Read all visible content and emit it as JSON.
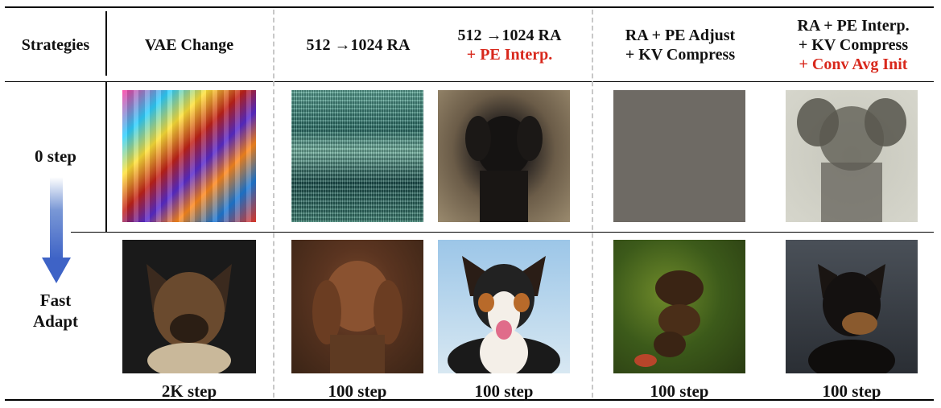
{
  "header": {
    "strategies": "Strategies",
    "col1": "VAE Change",
    "col2": "512 →1024 RA",
    "col3_line1": "512 →1024 RA",
    "col3_line2": "+ PE Interp.",
    "col4_line1": "RA + PE Adjust",
    "col4_line2": "+ KV Compress",
    "col5_line1": "RA + PE Interp.",
    "col5_line2": "+ KV Compress",
    "col5_line3": "+ Conv Avg Init"
  },
  "rows": {
    "row1_label": "0 step",
    "row2_label_line1": "Fast",
    "row2_label_line2": "Adapt"
  },
  "captions": [
    "2K step",
    "100 step",
    "100 step",
    "100 step",
    "100 step"
  ],
  "colors": {
    "accent_red": "#d8281c",
    "arrow_blue": "#3e63c6",
    "divider_gray": "#c8c8c8"
  }
}
